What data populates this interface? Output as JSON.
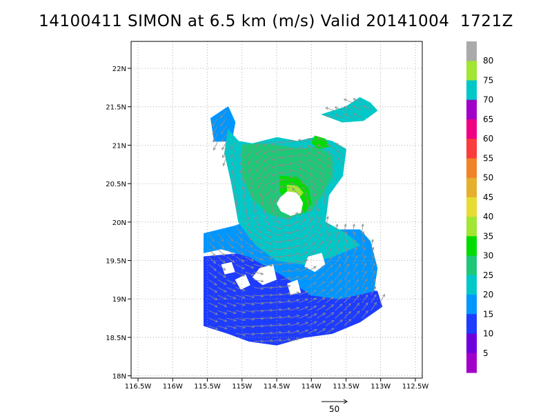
{
  "chart_data": {
    "type": "heatmap",
    "title": "14100411 SIMON at 6.5 km (m/s) Valid 20141004  1721Z",
    "x_tick_labels": [
      "116.5W",
      "116W",
      "115.5W",
      "115W",
      "114.5W",
      "114W",
      "113.5W",
      "113W",
      "112.5W"
    ],
    "x_ticks": [
      -116.5,
      -116.0,
      -115.5,
      -115.0,
      -114.5,
      -114.0,
      -113.5,
      -113.0,
      -112.5
    ],
    "y_tick_labels": [
      "18N",
      "18.5N",
      "19N",
      "19.5N",
      "20N",
      "20.5N",
      "21N",
      "21.5N",
      "22N"
    ],
    "y_ticks": [
      18.0,
      18.5,
      19.0,
      19.5,
      20.0,
      20.5,
      21.0,
      21.5,
      22.0
    ],
    "xlim": [
      -116.6,
      -112.4
    ],
    "ylim": [
      17.97,
      22.35
    ],
    "grid": true,
    "colorbar": {
      "labels": [
        "5",
        "10",
        "15",
        "20",
        "25",
        "30",
        "35",
        "40",
        "45",
        "50",
        "55",
        "60",
        "65",
        "70",
        "75",
        "80"
      ],
      "colors": [
        "#a000c8",
        "#6e00dc",
        "#1e3cff",
        "#0096ff",
        "#00c8c8",
        "#1ec878",
        "#00dc00",
        "#a0e632",
        "#e6dc32",
        "#e6af2d",
        "#f08228",
        "#fa3c3c",
        "#f00082",
        "#a000c8",
        "#00c8c8",
        "#a0e632",
        "#aaaaaa"
      ]
    },
    "reference_vector": {
      "label": "50"
    },
    "storm_center": {
      "lon": -114.38,
      "lat": 20.24
    },
    "regions": [
      {
        "level": "15",
        "color": "#1e3cff",
        "polygon": [
          [
            -115.55,
            19.55
          ],
          [
            -114.9,
            19.6
          ],
          [
            -114.5,
            19.35
          ],
          [
            -114.0,
            19.25
          ],
          [
            -113.6,
            19.15
          ],
          [
            -113.05,
            19.1
          ],
          [
            -112.98,
            18.9
          ],
          [
            -113.3,
            18.7
          ],
          [
            -113.7,
            18.55
          ],
          [
            -114.1,
            18.5
          ],
          [
            -114.5,
            18.4
          ],
          [
            -114.9,
            18.45
          ],
          [
            -115.2,
            18.55
          ],
          [
            -115.55,
            18.65
          ]
        ]
      },
      {
        "level": "20",
        "color": "#0096ff",
        "polygon": [
          [
            -115.55,
            19.85
          ],
          [
            -115.1,
            19.95
          ],
          [
            -114.8,
            20.05
          ],
          [
            -114.5,
            20.15
          ],
          [
            -114.3,
            20.05
          ],
          [
            -114.1,
            19.95
          ],
          [
            -113.8,
            19.9
          ],
          [
            -113.3,
            19.9
          ],
          [
            -113.15,
            19.75
          ],
          [
            -113.05,
            19.4
          ],
          [
            -113.1,
            19.1
          ],
          [
            -113.6,
            19.0
          ],
          [
            -114.0,
            19.05
          ],
          [
            -114.4,
            19.3
          ],
          [
            -114.9,
            19.55
          ],
          [
            -115.3,
            19.65
          ],
          [
            -115.55,
            19.6
          ]
        ]
      },
      {
        "level": "20",
        "color": "#0096ff",
        "polygon": [
          [
            -115.45,
            21.35
          ],
          [
            -115.2,
            21.5
          ],
          [
            -115.1,
            21.3
          ],
          [
            -115.15,
            21.05
          ],
          [
            -115.4,
            21.05
          ]
        ]
      },
      {
        "level": "25",
        "color": "#00c8c8",
        "polygon": [
          [
            -115.2,
            21.2
          ],
          [
            -115.05,
            21.05
          ],
          [
            -114.85,
            21.02
          ],
          [
            -114.5,
            21.1
          ],
          [
            -114.2,
            21.05
          ],
          [
            -113.95,
            21.1
          ],
          [
            -113.7,
            21.05
          ],
          [
            -113.5,
            20.95
          ],
          [
            -113.55,
            20.6
          ],
          [
            -113.75,
            20.35
          ],
          [
            -113.8,
            20.0
          ],
          [
            -113.5,
            19.85
          ],
          [
            -113.3,
            19.7
          ],
          [
            -113.7,
            19.55
          ],
          [
            -114.1,
            19.45
          ],
          [
            -114.5,
            19.5
          ],
          [
            -114.8,
            19.7
          ],
          [
            -115.05,
            20.0
          ],
          [
            -115.15,
            20.5
          ],
          [
            -115.25,
            20.9
          ]
        ]
      },
      {
        "level": "25",
        "color": "#00c8c8",
        "polygon": [
          [
            -113.85,
            21.4
          ],
          [
            -113.5,
            21.5
          ],
          [
            -113.3,
            21.62
          ],
          [
            -113.15,
            21.55
          ],
          [
            -113.05,
            21.45
          ],
          [
            -113.25,
            21.32
          ],
          [
            -113.55,
            21.3
          ]
        ]
      },
      {
        "level": "30",
        "color": "#1ec878",
        "polygon": [
          [
            -115.0,
            21.0
          ],
          [
            -114.75,
            21.02
          ],
          [
            -114.5,
            21.0
          ],
          [
            -114.15,
            20.95
          ],
          [
            -113.9,
            20.98
          ],
          [
            -113.7,
            20.85
          ],
          [
            -113.7,
            20.6
          ],
          [
            -113.85,
            20.35
          ],
          [
            -114.0,
            20.15
          ],
          [
            -114.35,
            20.05
          ],
          [
            -114.6,
            20.1
          ],
          [
            -114.85,
            20.3
          ],
          [
            -115.0,
            20.6
          ]
        ]
      },
      {
        "level": "35",
        "color": "#00dc00",
        "polygon": [
          [
            -114.45,
            20.6
          ],
          [
            -114.2,
            20.58
          ],
          [
            -114.05,
            20.45
          ],
          [
            -114.0,
            20.25
          ],
          [
            -114.1,
            20.12
          ],
          [
            -114.3,
            20.2
          ],
          [
            -114.45,
            20.4
          ]
        ]
      },
      {
        "level": "35",
        "color": "#00dc00",
        "polygon": [
          [
            -113.95,
            21.12
          ],
          [
            -113.8,
            21.08
          ],
          [
            -113.75,
            20.98
          ],
          [
            -113.9,
            20.96
          ],
          [
            -114.0,
            21.03
          ]
        ]
      },
      {
        "level": "40",
        "color": "#a0e632",
        "polygon": [
          [
            -114.35,
            20.48
          ],
          [
            -114.2,
            20.47
          ],
          [
            -114.12,
            20.38
          ],
          [
            -114.2,
            20.3
          ],
          [
            -114.34,
            20.35
          ]
        ]
      }
    ],
    "cutouts": [
      {
        "label": "eye",
        "polygon": [
          [
            -114.45,
            20.32
          ],
          [
            -114.35,
            20.4
          ],
          [
            -114.2,
            20.38
          ],
          [
            -114.12,
            20.25
          ],
          [
            -114.15,
            20.12
          ],
          [
            -114.3,
            20.08
          ],
          [
            -114.44,
            20.14
          ],
          [
            -114.5,
            20.24
          ]
        ]
      },
      {
        "label": "gap",
        "polygon": [
          [
            -114.05,
            19.55
          ],
          [
            -113.85,
            19.6
          ],
          [
            -113.8,
            19.45
          ],
          [
            -113.95,
            19.35
          ],
          [
            -114.1,
            19.42
          ]
        ]
      },
      {
        "label": "gap",
        "polygon": [
          [
            -114.75,
            19.4
          ],
          [
            -114.55,
            19.45
          ],
          [
            -114.5,
            19.25
          ],
          [
            -114.7,
            19.18
          ],
          [
            -114.85,
            19.28
          ]
        ]
      },
      {
        "label": "gap",
        "polygon": [
          [
            -115.1,
            19.25
          ],
          [
            -114.95,
            19.32
          ],
          [
            -114.88,
            19.18
          ],
          [
            -115.02,
            19.12
          ]
        ]
      },
      {
        "label": "gap",
        "polygon": [
          [
            -115.3,
            19.45
          ],
          [
            -115.15,
            19.48
          ],
          [
            -115.1,
            19.35
          ],
          [
            -115.25,
            19.32
          ]
        ]
      },
      {
        "label": "gap",
        "polygon": [
          [
            -114.35,
            19.2
          ],
          [
            -114.2,
            19.25
          ],
          [
            -114.15,
            19.08
          ],
          [
            -114.3,
            19.05
          ]
        ]
      }
    ]
  }
}
